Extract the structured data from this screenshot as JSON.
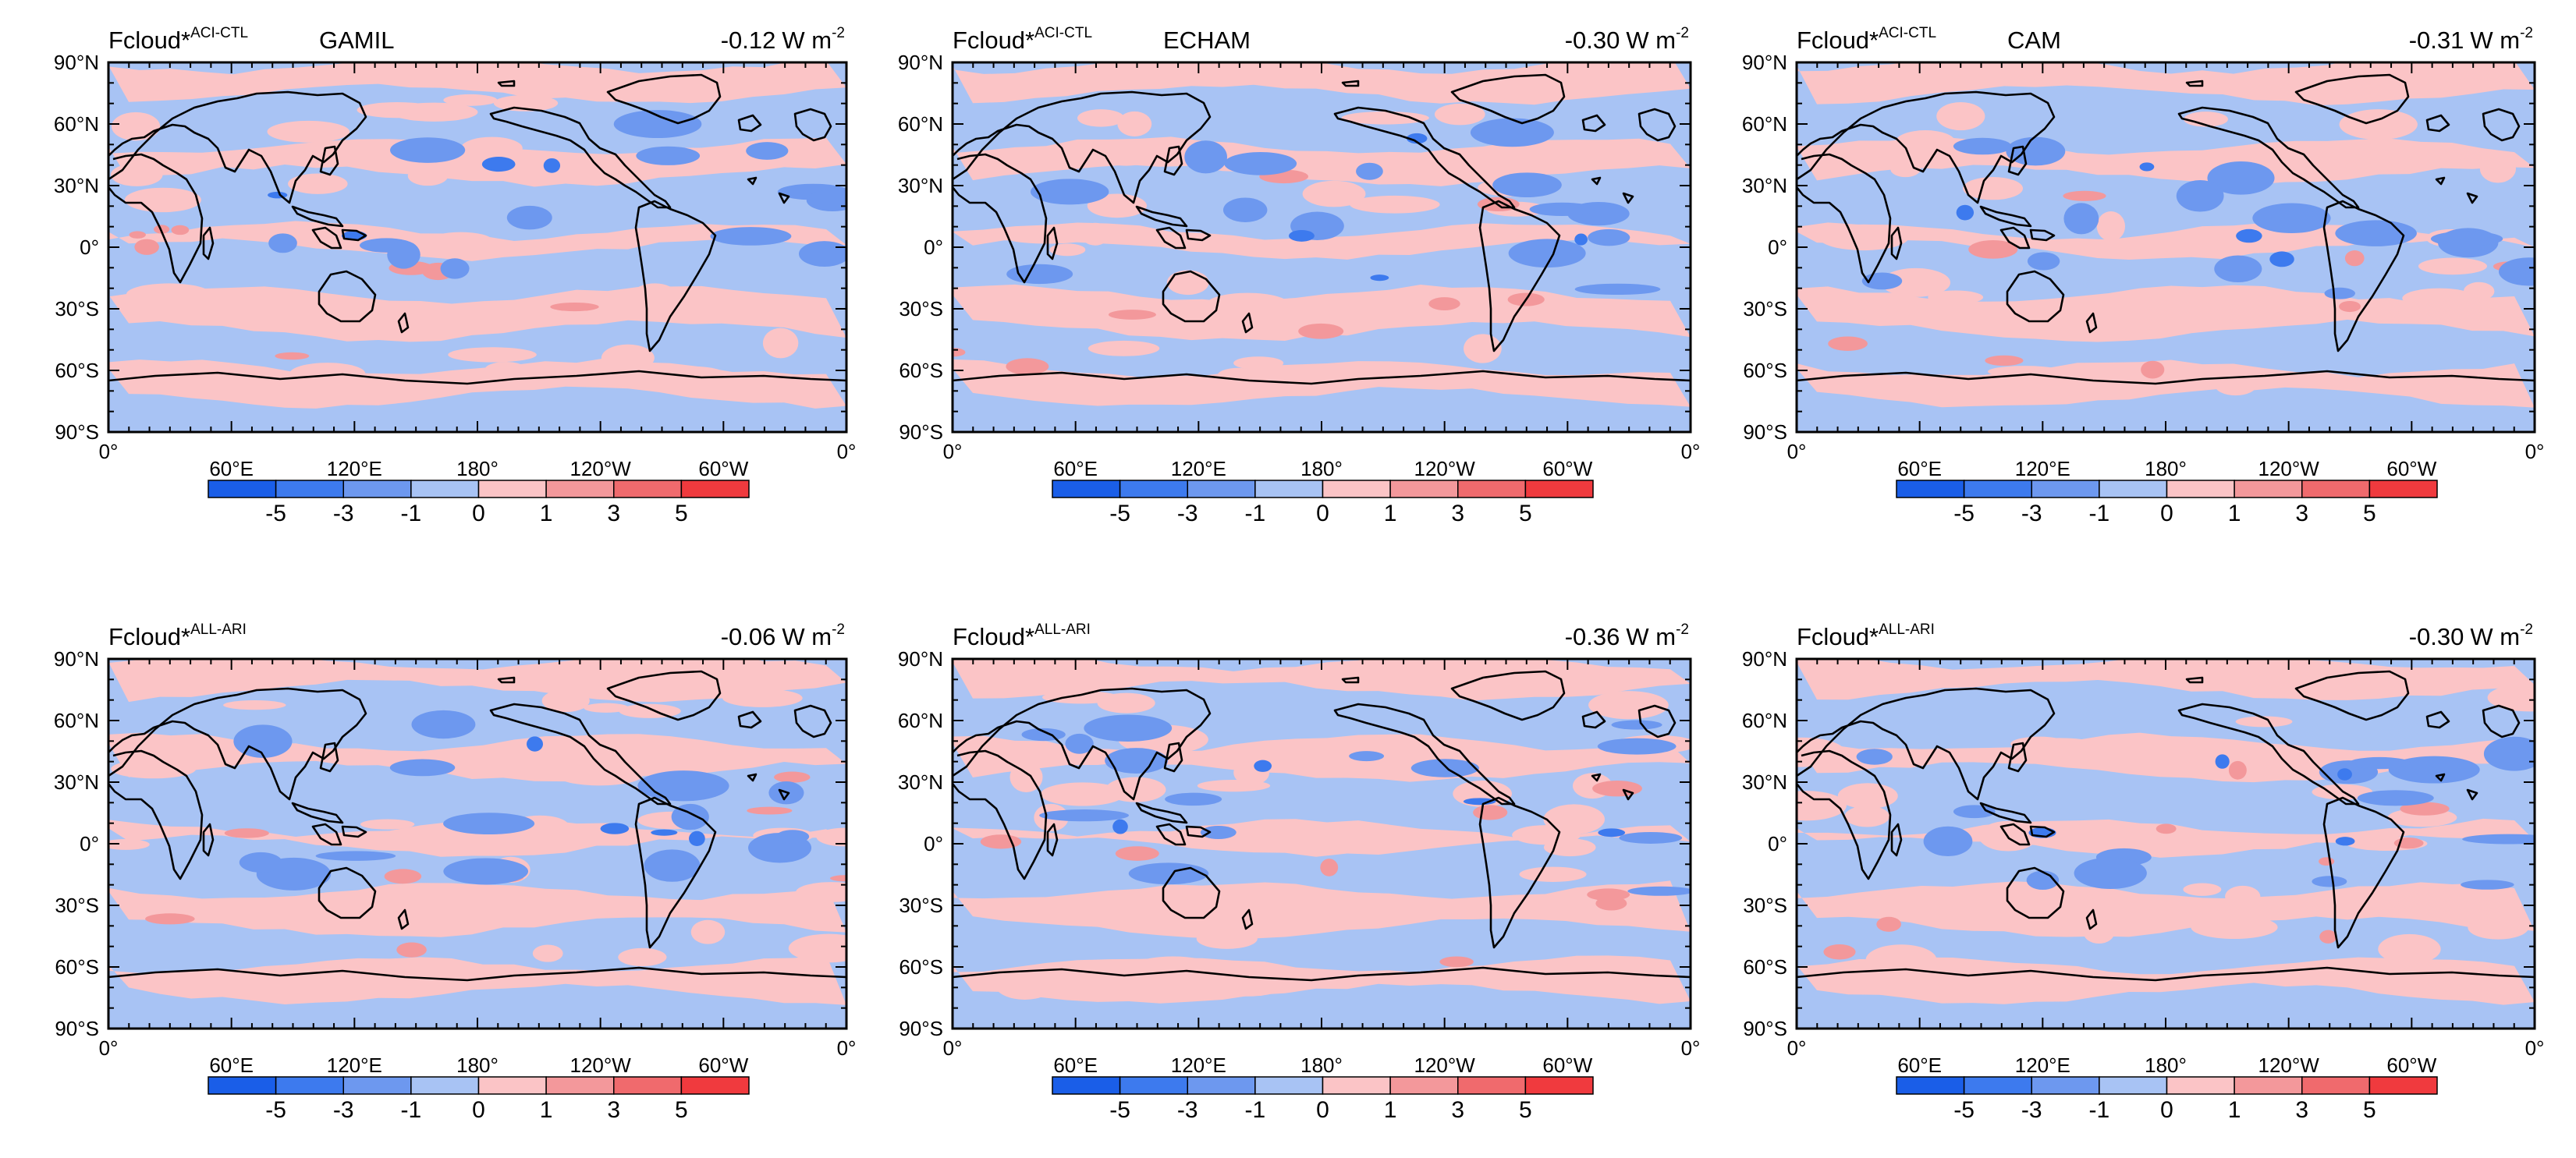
{
  "figure": {
    "variable_label": "Fcloud",
    "star": "*",
    "units_label": "W m",
    "units_exponent": "-2"
  },
  "axes": {
    "lat_ticks": [
      "90°N",
      "60°N",
      "30°N",
      "0°",
      "30°S",
      "60°S",
      "90°S"
    ],
    "lon_ticks": [
      "0°",
      "60°E",
      "120°E",
      "180°",
      "120°W",
      "60°W",
      "0°"
    ]
  },
  "colorbar": {
    "labels": [
      "-5",
      "-3",
      "-1",
      "0",
      "1",
      "3",
      "5"
    ],
    "colors": [
      "#1a5ee8",
      "#3d7aee",
      "#6d98ef",
      "#a8c3f4",
      "#fbc4c6",
      "#f3989b",
      "#f06a6d",
      "#f03a3e"
    ]
  },
  "colors": {
    "negative": "#a8c3f4",
    "negative_mid": "#6d98ef",
    "negative_strong": "#3d7aee",
    "positive": "#fbc4c6",
    "positive_mid": "#f3989b",
    "coast": "#000000"
  },
  "panels": [
    {
      "superscript": "ACI-CTL",
      "model": "GAMIL",
      "global_mean": "-0.12"
    },
    {
      "superscript": "ACI-CTL",
      "model": "ECHAM",
      "global_mean": "-0.30"
    },
    {
      "superscript": "ACI-CTL",
      "model": "CAM",
      "global_mean": "-0.31"
    },
    {
      "superscript": "ALL-ARI",
      "model": "",
      "global_mean": "-0.06"
    },
    {
      "superscript": "ALL-ARI",
      "model": "",
      "global_mean": "-0.36"
    },
    {
      "superscript": "ALL-ARI",
      "model": "",
      "global_mean": "-0.30"
    }
  ]
}
